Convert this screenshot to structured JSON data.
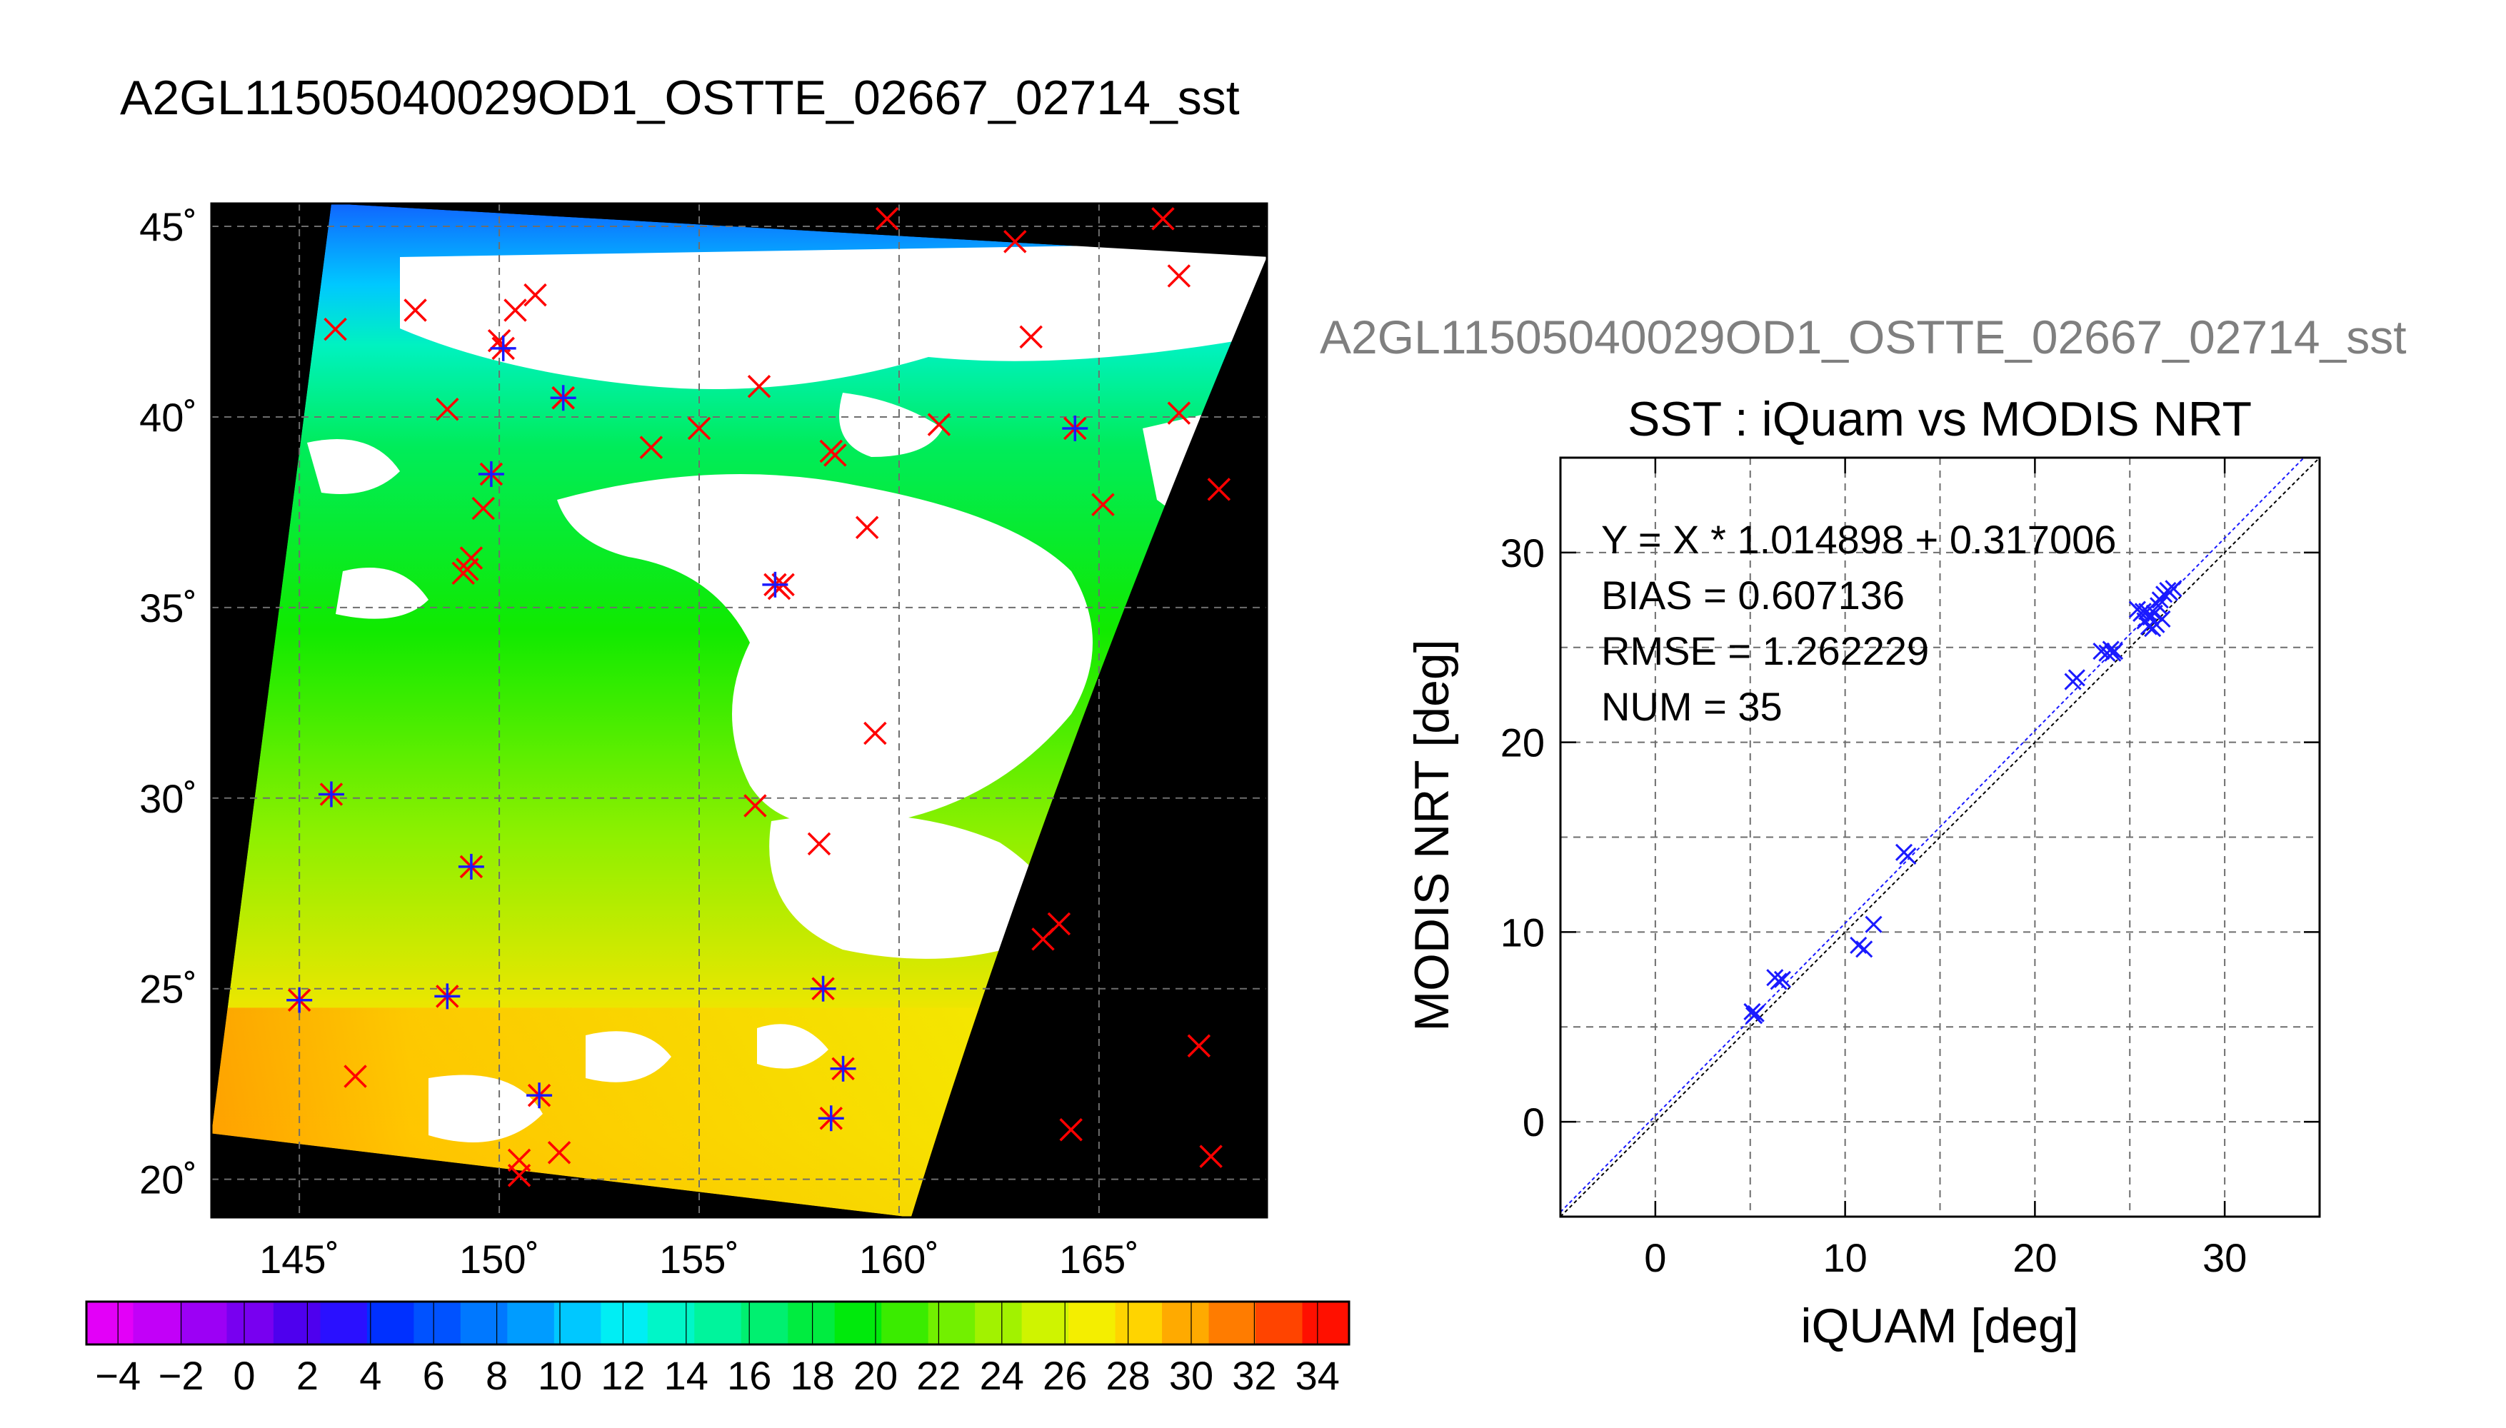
{
  "figure": {
    "title": "A2GL11505040029OD1_OSTTE_02667_02714_sst",
    "scatter_super_title": "A2GL11505040029OD1_OSTTE_02667_02714_sst"
  },
  "colors": {
    "background": "#ffffff",
    "frame": "#000000",
    "grid": "#6e6e6e",
    "map_no_data": "#000000",
    "map_cloud": "#ffffff",
    "insitu_marker": "#ff0000",
    "matchup_marker": "#1a1aff",
    "scatter_marker": "#1a1aff",
    "fit_line": "#1a1aff",
    "super_title": "#7f7f7f"
  },
  "chart_data": [
    {
      "type": "heatmap",
      "description_kind": "sst-map",
      "xlim": [
        142.8,
        169.2
      ],
      "ylim": [
        19.0,
        45.6
      ],
      "x_ticks": [
        145,
        150,
        155,
        160,
        165
      ],
      "x_tick_labels": [
        "145˚",
        "150˚",
        "155˚",
        "160˚",
        "165˚"
      ],
      "y_ticks": [
        20,
        25,
        30,
        35,
        40,
        45
      ],
      "y_tick_labels": [
        "20˚",
        "25˚",
        "30˚",
        "35˚",
        "40˚",
        "45˚"
      ],
      "grid": true,
      "swath_corners": [
        [
          145.8,
          45.6
        ],
        [
          169.2,
          44.2
        ],
        [
          160.3,
          19.0
        ],
        [
          142.8,
          21.2
        ]
      ],
      "insitu_x_markers": [
        [
          145.9,
          42.3
        ],
        [
          147.9,
          42.8
        ],
        [
          148.7,
          40.2
        ],
        [
          150.0,
          42.0
        ],
        [
          150.4,
          42.8
        ],
        [
          150.9,
          43.2
        ],
        [
          151.6,
          40.5
        ],
        [
          153.8,
          39.2
        ],
        [
          155.0,
          39.7
        ],
        [
          156.5,
          40.8
        ],
        [
          158.3,
          39.1
        ],
        [
          158.4,
          39.0
        ],
        [
          159.2,
          37.1
        ],
        [
          161.0,
          39.8
        ],
        [
          163.3,
          42.1
        ],
        [
          167.0,
          40.1
        ],
        [
          165.1,
          37.7
        ],
        [
          168.0,
          38.1
        ],
        [
          159.7,
          45.2
        ],
        [
          162.9,
          44.6
        ],
        [
          166.6,
          45.2
        ],
        [
          167.0,
          43.7
        ],
        [
          149.6,
          37.6
        ],
        [
          149.3,
          36.3
        ],
        [
          149.1,
          35.9
        ],
        [
          149.2,
          36.0
        ],
        [
          157.1,
          35.6
        ],
        [
          157.0,
          35.5
        ],
        [
          159.4,
          31.7
        ],
        [
          156.4,
          29.8
        ],
        [
          158.0,
          28.8
        ],
        [
          146.4,
          22.7
        ],
        [
          150.5,
          20.5
        ],
        [
          150.5,
          20.1
        ],
        [
          151.5,
          20.7
        ],
        [
          163.6,
          26.3
        ],
        [
          164.0,
          26.7
        ],
        [
          167.5,
          23.5
        ],
        [
          164.3,
          21.3
        ],
        [
          167.8,
          20.6
        ]
      ],
      "matchup_markers": [
        [
          150.1,
          41.8
        ],
        [
          149.8,
          38.5
        ],
        [
          151.6,
          40.5
        ],
        [
          164.4,
          39.7
        ],
        [
          156.9,
          35.6
        ],
        [
          145.8,
          30.1
        ],
        [
          149.3,
          28.2
        ],
        [
          145.0,
          24.7
        ],
        [
          148.7,
          24.8
        ],
        [
          158.1,
          25.0
        ],
        [
          158.6,
          22.9
        ],
        [
          151.0,
          22.2
        ],
        [
          158.3,
          21.6
        ]
      ],
      "colorbar": {
        "range": [
          -5,
          35
        ],
        "step": 2,
        "tick_labels": [
          "−4",
          "−2",
          "0",
          "2",
          "4",
          "6",
          "8",
          "10",
          "12",
          "14",
          "16",
          "18",
          "20",
          "22",
          "24",
          "26",
          "28",
          "30",
          "32",
          "34"
        ],
        "tick_values": [
          -4,
          -2,
          0,
          2,
          4,
          6,
          8,
          10,
          12,
          14,
          16,
          18,
          20,
          22,
          24,
          26,
          28,
          30,
          32,
          34
        ],
        "colors": [
          "#e300f8",
          "#c200f8",
          "#9c00f5",
          "#7800f0",
          "#4e00ee",
          "#2a10ff",
          "#0030ff",
          "#0052ff",
          "#0078ff",
          "#009cff",
          "#00c8ff",
          "#00eef4",
          "#00f6c8",
          "#00f49c",
          "#00f070",
          "#00ec40",
          "#00ea0c",
          "#3aec00",
          "#72f000",
          "#a2f200",
          "#cff400",
          "#f4ee00",
          "#ffd400",
          "#ffaa00",
          "#ff7c00",
          "#ff4400",
          "#ff1000"
        ]
      }
    },
    {
      "type": "scatter",
      "title": "SST : iQuam vs MODIS NRT",
      "xlabel": "iQUAM [deg]",
      "ylabel": "MODIS NRT [deg]",
      "xlim": [
        -5,
        35
      ],
      "ylim": [
        -5,
        35
      ],
      "x_ticks": [
        0,
        10,
        20,
        30
      ],
      "y_ticks": [
        0,
        10,
        20,
        30
      ],
      "x_tick_labels": [
        "0",
        "10",
        "20",
        "30"
      ],
      "y_tick_labels": [
        "0",
        "10",
        "20",
        "30"
      ],
      "grid": true,
      "annotations": [
        "Y = X * 1.014898 + 0.317006",
        "BIAS = 0.607136",
        "RMSE = 1.262229",
        "NUM = 35"
      ],
      "fit": {
        "slope": 1.014898,
        "intercept": 0.317006
      },
      "x": [
        5.1,
        5.2,
        5.3,
        6.3,
        6.5,
        6.7,
        10.7,
        11.0,
        11.5,
        13.1,
        13.3,
        22.0,
        22.2,
        23.5,
        23.8,
        24.0,
        24.2,
        25.4,
        25.6,
        25.7,
        25.8,
        26.0,
        26.1,
        26.3,
        26.4,
        26.5,
        26.6,
        26.8,
        27.0,
        27.1,
        27.3,
        26.2,
        25.9,
        26.7,
        24.1
      ],
      "y": [
        5.8,
        5.6,
        5.7,
        7.6,
        7.4,
        7.5,
        9.3,
        9.1,
        10.4,
        14.2,
        14.0,
        23.2,
        23.4,
        24.8,
        24.7,
        24.9,
        24.8,
        27.0,
        26.8,
        26.9,
        26.4,
        26.1,
        26.6,
        26.8,
        26.2,
        27.2,
        27.5,
        27.8,
        28.0,
        27.9,
        28.1,
        26.0,
        26.9,
        26.5,
        24.7
      ]
    }
  ]
}
